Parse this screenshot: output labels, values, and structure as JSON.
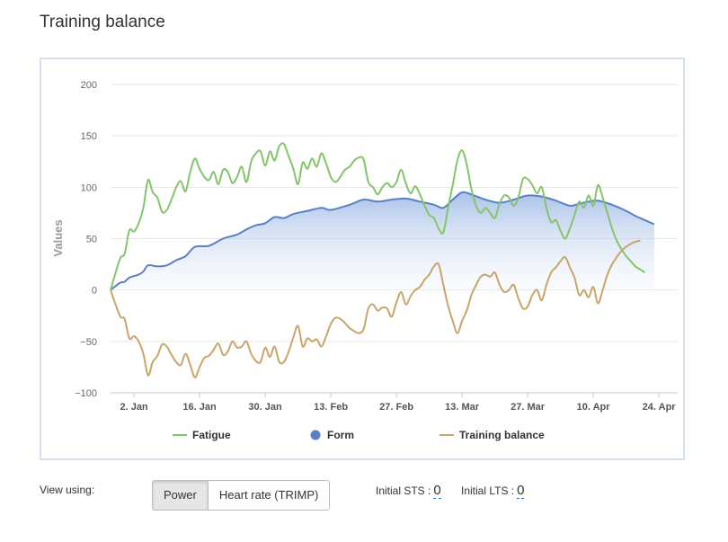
{
  "page": {
    "title": "Training balance"
  },
  "chart_data": {
    "type": "line",
    "ylabel": "Values",
    "ylim": [
      -100,
      200
    ],
    "yticks": [
      200,
      150,
      100,
      50,
      0,
      -50,
      -100
    ],
    "xticks": [
      "2. Jan",
      "16. Jan",
      "30. Jan",
      "13. Feb",
      "27. Feb",
      "13. Mar",
      "27. Mar",
      "10. Apr",
      "24. Apr"
    ],
    "x_start": "2018-12-28",
    "x_end": "2019-04-28",
    "grid": true,
    "legend_position": "bottom",
    "series": [
      {
        "name": "Fatigue",
        "color": "#84c46b",
        "style": "line",
        "points": [
          [
            "2018-12-28",
            0
          ],
          [
            "2018-12-30",
            30
          ],
          [
            "2018-12-31",
            35
          ],
          [
            "2019-01-01",
            58
          ],
          [
            "2019-01-02",
            57
          ],
          [
            "2019-01-03",
            65
          ],
          [
            "2019-01-04",
            80
          ],
          [
            "2019-01-05",
            107
          ],
          [
            "2019-01-06",
            95
          ],
          [
            "2019-01-07",
            90
          ],
          [
            "2019-01-08",
            76
          ],
          [
            "2019-01-09",
            78
          ],
          [
            "2019-01-10",
            88
          ],
          [
            "2019-01-11",
            100
          ],
          [
            "2019-01-12",
            106
          ],
          [
            "2019-01-13",
            96
          ],
          [
            "2019-01-14",
            115
          ],
          [
            "2019-01-15",
            128
          ],
          [
            "2019-01-16",
            118
          ],
          [
            "2019-01-17",
            110
          ],
          [
            "2019-01-18",
            107
          ],
          [
            "2019-01-19",
            115
          ],
          [
            "2019-01-20",
            103
          ],
          [
            "2019-01-21",
            117
          ],
          [
            "2019-01-22",
            115
          ],
          [
            "2019-01-23",
            104
          ],
          [
            "2019-01-24",
            110
          ],
          [
            "2019-01-25",
            120
          ],
          [
            "2019-01-26",
            105
          ],
          [
            "2019-01-27",
            125
          ],
          [
            "2019-01-28",
            133
          ],
          [
            "2019-01-29",
            135
          ],
          [
            "2019-01-30",
            121
          ],
          [
            "2019-01-31",
            135
          ],
          [
            "2019-02-01",
            126
          ],
          [
            "2019-02-02",
            140
          ],
          [
            "2019-02-03",
            142
          ],
          [
            "2019-02-04",
            130
          ],
          [
            "2019-02-05",
            118
          ],
          [
            "2019-02-06",
            103
          ],
          [
            "2019-02-07",
            124
          ],
          [
            "2019-02-08",
            118
          ],
          [
            "2019-02-09",
            128
          ],
          [
            "2019-02-10",
            120
          ],
          [
            "2019-02-11",
            133
          ],
          [
            "2019-02-12",
            123
          ],
          [
            "2019-02-13",
            110
          ],
          [
            "2019-02-14",
            105
          ],
          [
            "2019-02-15",
            110
          ],
          [
            "2019-02-16",
            117
          ],
          [
            "2019-02-17",
            120
          ],
          [
            "2019-02-18",
            126
          ],
          [
            "2019-02-19",
            129
          ],
          [
            "2019-02-20",
            127
          ],
          [
            "2019-02-21",
            105
          ],
          [
            "2019-02-22",
            100
          ],
          [
            "2019-02-23",
            93
          ],
          [
            "2019-02-24",
            100
          ],
          [
            "2019-02-25",
            104
          ],
          [
            "2019-02-26",
            100
          ],
          [
            "2019-02-27",
            105
          ],
          [
            "2019-02-28",
            117
          ],
          [
            "2019-03-01",
            104
          ],
          [
            "2019-03-02",
            94
          ],
          [
            "2019-03-03",
            101
          ],
          [
            "2019-03-04",
            93
          ],
          [
            "2019-03-05",
            82
          ],
          [
            "2019-03-06",
            73
          ],
          [
            "2019-03-07",
            70
          ],
          [
            "2019-03-08",
            60
          ],
          [
            "2019-03-09",
            56
          ],
          [
            "2019-03-10",
            80
          ],
          [
            "2019-03-11",
            102
          ],
          [
            "2019-03-12",
            126
          ],
          [
            "2019-03-13",
            136
          ],
          [
            "2019-03-14",
            122
          ],
          [
            "2019-03-15",
            98
          ],
          [
            "2019-03-16",
            82
          ],
          [
            "2019-03-17",
            75
          ],
          [
            "2019-03-18",
            80
          ],
          [
            "2019-03-19",
            75
          ],
          [
            "2019-03-20",
            70
          ],
          [
            "2019-03-21",
            84
          ],
          [
            "2019-03-22",
            92
          ],
          [
            "2019-03-23",
            90
          ],
          [
            "2019-03-24",
            82
          ],
          [
            "2019-03-25",
            90
          ],
          [
            "2019-03-26",
            108
          ],
          [
            "2019-03-27",
            108
          ],
          [
            "2019-03-28",
            102
          ],
          [
            "2019-03-29",
            94
          ],
          [
            "2019-03-30",
            100
          ],
          [
            "2019-03-31",
            80
          ],
          [
            "2019-04-01",
            66
          ],
          [
            "2019-04-02",
            68
          ],
          [
            "2019-04-03",
            58
          ],
          [
            "2019-04-04",
            50
          ],
          [
            "2019-04-05",
            60
          ],
          [
            "2019-04-06",
            73
          ],
          [
            "2019-04-07",
            86
          ],
          [
            "2019-04-08",
            80
          ],
          [
            "2019-04-09",
            92
          ],
          [
            "2019-04-10",
            82
          ],
          [
            "2019-04-11",
            102
          ],
          [
            "2019-04-12",
            90
          ],
          [
            "2019-04-13",
            75
          ],
          [
            "2019-04-14",
            60
          ],
          [
            "2019-04-15",
            48
          ],
          [
            "2019-04-16",
            40
          ],
          [
            "2019-04-17",
            33
          ],
          [
            "2019-04-18",
            28
          ],
          [
            "2019-04-19",
            23
          ],
          [
            "2019-04-20",
            20
          ],
          [
            "2019-04-21",
            17
          ]
        ]
      },
      {
        "name": "Form",
        "color": "#5b7fc5",
        "style": "area",
        "points": [
          [
            "2018-12-28",
            0
          ],
          [
            "2018-12-30",
            7
          ],
          [
            "2018-12-31",
            8
          ],
          [
            "2019-01-01",
            12
          ],
          [
            "2019-01-03",
            15
          ],
          [
            "2019-01-04",
            18
          ],
          [
            "2019-01-05",
            24
          ],
          [
            "2019-01-07",
            23
          ],
          [
            "2019-01-09",
            24
          ],
          [
            "2019-01-11",
            29
          ],
          [
            "2019-01-13",
            33
          ],
          [
            "2019-01-15",
            42
          ],
          [
            "2019-01-18",
            43
          ],
          [
            "2019-01-21",
            50
          ],
          [
            "2019-01-24",
            54
          ],
          [
            "2019-01-26",
            59
          ],
          [
            "2019-01-28",
            63
          ],
          [
            "2019-01-30",
            65
          ],
          [
            "2019-02-01",
            71
          ],
          [
            "2019-02-03",
            70
          ],
          [
            "2019-02-05",
            74
          ],
          [
            "2019-02-08",
            77
          ],
          [
            "2019-02-11",
            80
          ],
          [
            "2019-02-13",
            78
          ],
          [
            "2019-02-17",
            83
          ],
          [
            "2019-02-20",
            88
          ],
          [
            "2019-02-23",
            86
          ],
          [
            "2019-02-26",
            88
          ],
          [
            "2019-03-01",
            89
          ],
          [
            "2019-03-04",
            86
          ],
          [
            "2019-03-07",
            83
          ],
          [
            "2019-03-09",
            80
          ],
          [
            "2019-03-11",
            88
          ],
          [
            "2019-03-13",
            95
          ],
          [
            "2019-03-15",
            93
          ],
          [
            "2019-03-18",
            88
          ],
          [
            "2019-03-21",
            85
          ],
          [
            "2019-03-24",
            88
          ],
          [
            "2019-03-27",
            92
          ],
          [
            "2019-03-30",
            91
          ],
          [
            "2019-04-02",
            87
          ],
          [
            "2019-04-05",
            82
          ],
          [
            "2019-04-07",
            84
          ],
          [
            "2019-04-09",
            86
          ],
          [
            "2019-04-11",
            87
          ],
          [
            "2019-04-14",
            83
          ],
          [
            "2019-04-17",
            77
          ],
          [
            "2019-04-19",
            72
          ],
          [
            "2019-04-21",
            68
          ],
          [
            "2019-04-23",
            64
          ]
        ]
      },
      {
        "name": "Training balance",
        "color": "#c9a56b",
        "style": "line",
        "points": [
          [
            "2018-12-28",
            0
          ],
          [
            "2018-12-30",
            -25
          ],
          [
            "2018-12-31",
            -28
          ],
          [
            "2019-01-01",
            -47
          ],
          [
            "2019-01-02",
            -45
          ],
          [
            "2019-01-03",
            -50
          ],
          [
            "2019-01-04",
            -62
          ],
          [
            "2019-01-05",
            -83
          ],
          [
            "2019-01-06",
            -70
          ],
          [
            "2019-01-07",
            -64
          ],
          [
            "2019-01-08",
            -53
          ],
          [
            "2019-01-09",
            -55
          ],
          [
            "2019-01-10",
            -63
          ],
          [
            "2019-01-11",
            -70
          ],
          [
            "2019-01-12",
            -73
          ],
          [
            "2019-01-13",
            -62
          ],
          [
            "2019-01-14",
            -73
          ],
          [
            "2019-01-15",
            -85
          ],
          [
            "2019-01-16",
            -75
          ],
          [
            "2019-01-17",
            -66
          ],
          [
            "2019-01-18",
            -64
          ],
          [
            "2019-01-19",
            -58
          ],
          [
            "2019-01-20",
            -52
          ],
          [
            "2019-01-21",
            -63
          ],
          [
            "2019-01-22",
            -60
          ],
          [
            "2019-01-23",
            -50
          ],
          [
            "2019-01-24",
            -56
          ],
          [
            "2019-01-25",
            -55
          ],
          [
            "2019-01-26",
            -50
          ],
          [
            "2019-01-27",
            -62
          ],
          [
            "2019-01-28",
            -69
          ],
          [
            "2019-01-29",
            -70
          ],
          [
            "2019-01-30",
            -56
          ],
          [
            "2019-01-31",
            -65
          ],
          [
            "2019-02-01",
            -55
          ],
          [
            "2019-02-02",
            -70
          ],
          [
            "2019-02-03",
            -70
          ],
          [
            "2019-02-04",
            -60
          ],
          [
            "2019-02-05",
            -46
          ],
          [
            "2019-02-06",
            -35
          ],
          [
            "2019-02-07",
            -55
          ],
          [
            "2019-02-08",
            -47
          ],
          [
            "2019-02-09",
            -50
          ],
          [
            "2019-02-10",
            -48
          ],
          [
            "2019-02-11",
            -55
          ],
          [
            "2019-02-12",
            -45
          ],
          [
            "2019-02-13",
            -33
          ],
          [
            "2019-02-14",
            -27
          ],
          [
            "2019-02-15",
            -28
          ],
          [
            "2019-02-16",
            -32
          ],
          [
            "2019-02-17",
            -37
          ],
          [
            "2019-02-18",
            -40
          ],
          [
            "2019-02-19",
            -42
          ],
          [
            "2019-02-20",
            -38
          ],
          [
            "2019-02-21",
            -18
          ],
          [
            "2019-02-22",
            -14
          ],
          [
            "2019-02-23",
            -20
          ],
          [
            "2019-02-24",
            -17
          ],
          [
            "2019-02-25",
            -18
          ],
          [
            "2019-02-26",
            -26
          ],
          [
            "2019-02-27",
            -12
          ],
          [
            "2019-02-28",
            -2
          ],
          [
            "2019-03-01",
            -14
          ],
          [
            "2019-03-02",
            -6
          ],
          [
            "2019-03-03",
            0
          ],
          [
            "2019-03-04",
            3
          ],
          [
            "2019-03-05",
            10
          ],
          [
            "2019-03-06",
            15
          ],
          [
            "2019-03-07",
            23
          ],
          [
            "2019-03-08",
            25
          ],
          [
            "2019-03-09",
            5
          ],
          [
            "2019-03-10",
            -15
          ],
          [
            "2019-03-11",
            -30
          ],
          [
            "2019-03-12",
            -42
          ],
          [
            "2019-03-13",
            -30
          ],
          [
            "2019-03-14",
            -20
          ],
          [
            "2019-03-15",
            -5
          ],
          [
            "2019-03-16",
            5
          ],
          [
            "2019-03-17",
            13
          ],
          [
            "2019-03-18",
            15
          ],
          [
            "2019-03-19",
            13
          ],
          [
            "2019-03-20",
            17
          ],
          [
            "2019-03-21",
            5
          ],
          [
            "2019-03-22",
            -2
          ],
          [
            "2019-03-23",
            0
          ],
          [
            "2019-03-24",
            5
          ],
          [
            "2019-03-25",
            -8
          ],
          [
            "2019-03-26",
            -18
          ],
          [
            "2019-03-27",
            -16
          ],
          [
            "2019-03-28",
            -5
          ],
          [
            "2019-03-29",
            0
          ],
          [
            "2019-03-30",
            -10
          ],
          [
            "2019-03-31",
            5
          ],
          [
            "2019-04-01",
            17
          ],
          [
            "2019-04-02",
            22
          ],
          [
            "2019-04-03",
            28
          ],
          [
            "2019-04-04",
            32
          ],
          [
            "2019-04-05",
            22
          ],
          [
            "2019-04-06",
            12
          ],
          [
            "2019-04-07",
            -5
          ],
          [
            "2019-04-08",
            0
          ],
          [
            "2019-04-09",
            -7
          ],
          [
            "2019-04-10",
            3
          ],
          [
            "2019-04-11",
            -13
          ],
          [
            "2019-04-12",
            0
          ],
          [
            "2019-04-13",
            15
          ],
          [
            "2019-04-14",
            25
          ],
          [
            "2019-04-15",
            32
          ],
          [
            "2019-04-16",
            38
          ],
          [
            "2019-04-17",
            42
          ],
          [
            "2019-04-18",
            45
          ],
          [
            "2019-04-19",
            47
          ],
          [
            "2019-04-20",
            48
          ]
        ]
      }
    ]
  },
  "controls": {
    "view_using_label": "View using:",
    "buttons": [
      {
        "label": "Power",
        "active": true
      },
      {
        "label": "Heart rate (TRIMP)",
        "active": false
      }
    ],
    "initial_sts_label": "Initial STS :",
    "initial_sts_value": "0",
    "initial_lts_label": "Initial LTS :",
    "initial_lts_value": "0"
  }
}
